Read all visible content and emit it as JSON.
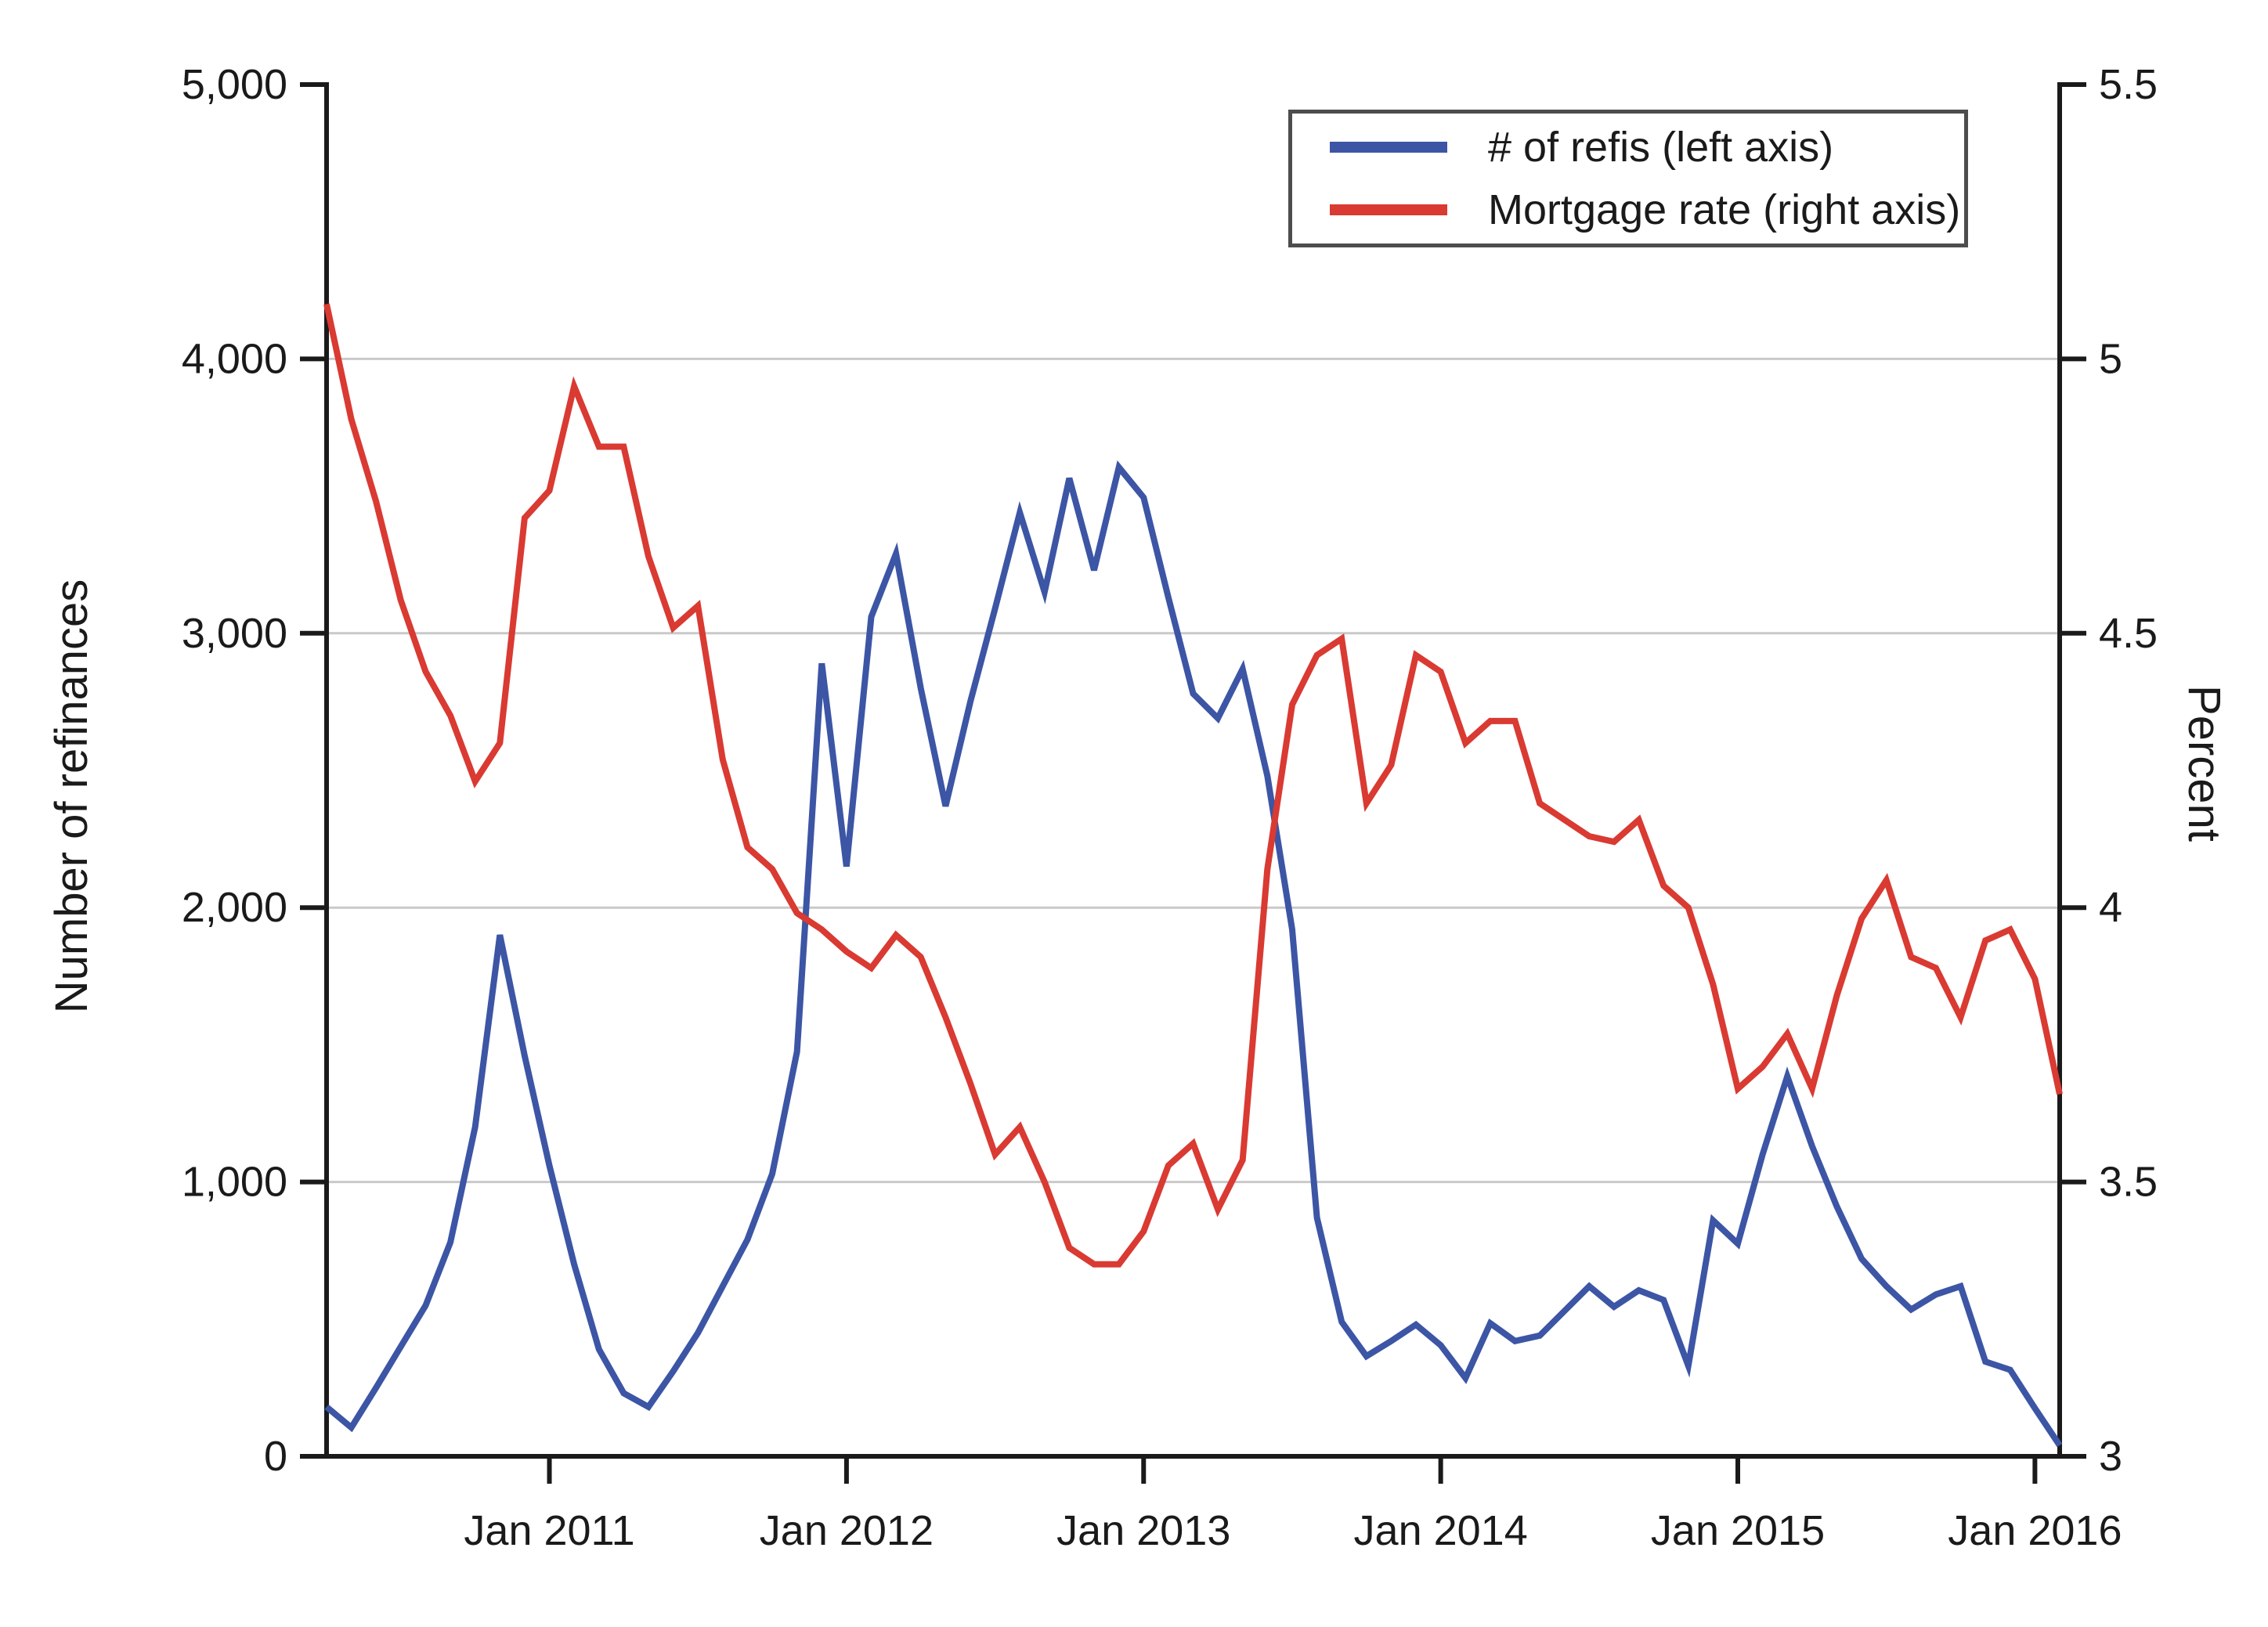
{
  "chart_data": {
    "type": "line",
    "title": "",
    "xlabel": "",
    "ylabel_left": "Number of refinances",
    "ylabel_right": "Percent",
    "ylim_left": [
      0,
      5000
    ],
    "ylim_right": [
      3,
      5.5
    ],
    "grid": "horizontal gridlines at left-axis intervals of 1,000 (right-axis 0.5)",
    "legend_position": "top-right inside plot area",
    "x": [
      "Apr 2010",
      "May 2010",
      "Jun 2010",
      "Jul 2010",
      "Aug 2010",
      "Sep 2010",
      "Oct 2010",
      "Nov 2010",
      "Dec 2010",
      "Jan 2011",
      "Feb 2011",
      "Mar 2011",
      "Apr 2011",
      "May 2011",
      "Jun 2011",
      "Jul 2011",
      "Aug 2011",
      "Sep 2011",
      "Oct 2011",
      "Nov 2011",
      "Dec 2011",
      "Jan 2012",
      "Feb 2012",
      "Mar 2012",
      "Apr 2012",
      "May 2012",
      "Jun 2012",
      "Jul 2012",
      "Aug 2012",
      "Sep 2012",
      "Oct 2012",
      "Nov 2012",
      "Dec 2012",
      "Jan 2013",
      "Feb 2013",
      "Mar 2013",
      "Apr 2013",
      "May 2013",
      "Jun 2013",
      "Jul 2013",
      "Aug 2013",
      "Sep 2013",
      "Oct 2013",
      "Nov 2013",
      "Dec 2013",
      "Jan 2014",
      "Feb 2014",
      "Mar 2014",
      "Apr 2014",
      "May 2014",
      "Jun 2014",
      "Jul 2014",
      "Aug 2014",
      "Sep 2014",
      "Oct 2014",
      "Nov 2014",
      "Dec 2014",
      "Jan 2015",
      "Feb 2015",
      "Mar 2015",
      "Apr 2015",
      "May 2015",
      "Jun 2015",
      "Jul 2015",
      "Aug 2015",
      "Sep 2015",
      "Oct 2015",
      "Nov 2015",
      "Dec 2015",
      "Jan 2016",
      "Feb 2016"
    ],
    "series": [
      {
        "name": "# of refis (left axis)",
        "axis": "left",
        "color": "#3C55A5",
        "values": [
          180,
          105,
          250,
          400,
          550,
          780,
          1200,
          1900,
          1460,
          1060,
          700,
          390,
          230,
          180,
          310,
          450,
          620,
          790,
          1030,
          1475,
          2890,
          2150,
          3060,
          3290,
          2800,
          2370,
          2750,
          3090,
          3440,
          3150,
          3565,
          3230,
          3605,
          3495,
          3130,
          2780,
          2690,
          2870,
          2480,
          1920,
          870,
          490,
          365,
          420,
          480,
          405,
          285,
          485,
          420,
          440,
          530,
          620,
          545,
          605,
          570,
          330,
          860,
          775,
          1100,
          1385,
          1130,
          910,
          720,
          620,
          535,
          590,
          620,
          345,
          315,
          175,
          40
        ]
      },
      {
        "name": "Mortgage rate (right axis)",
        "axis": "right",
        "color": "#D93A32",
        "values": [
          5.1,
          4.89,
          4.74,
          4.56,
          4.43,
          4.35,
          4.23,
          4.3,
          4.71,
          4.76,
          4.95,
          4.84,
          4.84,
          4.64,
          4.51,
          4.55,
          4.27,
          4.11,
          4.07,
          3.99,
          3.96,
          3.92,
          3.89,
          3.95,
          3.91,
          3.8,
          3.68,
          3.55,
          3.6,
          3.5,
          3.38,
          3.35,
          3.35,
          3.41,
          3.53,
          3.57,
          3.45,
          3.54,
          4.07,
          4.37,
          4.46,
          4.49,
          4.19,
          4.26,
          4.46,
          4.43,
          4.3,
          4.34,
          4.34,
          4.19,
          4.16,
          4.13,
          4.12,
          4.16,
          4.04,
          4.0,
          3.86,
          3.67,
          3.71,
          3.77,
          3.67,
          3.84,
          3.98,
          4.05,
          3.91,
          3.89,
          3.8,
          3.94,
          3.96,
          3.87,
          3.66
        ]
      }
    ],
    "yticks_left": [
      "0",
      "1,000",
      "2,000",
      "3,000",
      "4,000",
      "5,000"
    ],
    "yticks_left_values": [
      0,
      1000,
      2000,
      3000,
      4000,
      5000
    ],
    "yticks_right": [
      "3",
      "3.5",
      "4",
      "4.5",
      "5",
      "5.5"
    ],
    "yticks_right_values": [
      3,
      3.5,
      4,
      4.5,
      5,
      5.5
    ],
    "xticks": [
      "Jan 2011",
      "Jan 2012",
      "Jan 2013",
      "Jan 2014",
      "Jan 2015",
      "Jan 2016"
    ],
    "xtick_month_index": [
      9,
      21,
      33,
      45,
      57,
      69
    ],
    "colors": {
      "grid": "#C9C9C9",
      "axis": "#1A1A1A",
      "legend_border": "#4D4D4D",
      "background": "#FFFFFF",
      "refis_line": "#3C55A5",
      "rate_line": "#D93A32"
    }
  }
}
